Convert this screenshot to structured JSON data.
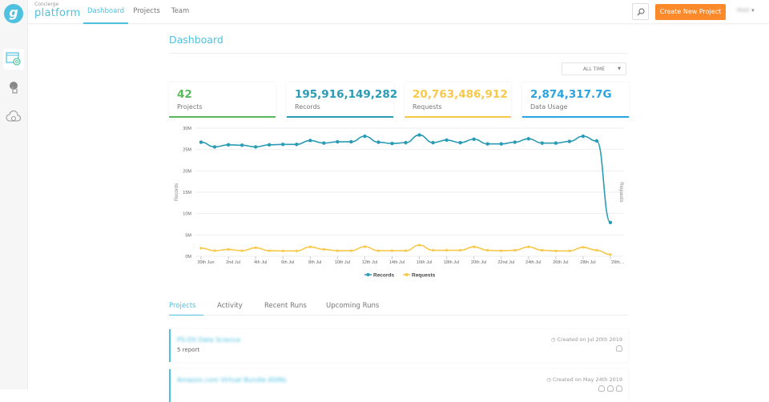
{
  "app": {
    "brand_small": "Concierge",
    "brand": "platform",
    "logo_letter": "g"
  },
  "nav": {
    "items": [
      {
        "label": "Dashboard",
        "active": true
      },
      {
        "label": "Projects"
      },
      {
        "label": "Team"
      }
    ],
    "create_label": "Create New Project",
    "user_name": "Matt"
  },
  "sidebar": {
    "icons": [
      "dashboard-settings-icon",
      "touch-icon",
      "cloud-icon"
    ]
  },
  "page": {
    "title": "Dashboard",
    "range": "ALL TIME"
  },
  "cards": [
    {
      "value": "42",
      "label": "Projects",
      "color": "#5cb85c"
    },
    {
      "value": "195,916,149,282",
      "label": "Records",
      "color": "#2a9bb5"
    },
    {
      "value": "20,763,486,912",
      "label": "Requests",
      "color": "#f7c84a"
    },
    {
      "value": "2,874,317.7G",
      "label": "Data Usage",
      "color": "#2aa4e0"
    }
  ],
  "chart_data": {
    "type": "line",
    "ylabel": "Records",
    "y2label": "Requests",
    "ylim": [
      0,
      30000000
    ],
    "y_ticks": [
      "0M",
      "5M",
      "10M",
      "15M",
      "20M",
      "25M",
      "30M"
    ],
    "x_tick_labels": [
      "30th Jun",
      "2nd Jul",
      "4th Jul",
      "6th Jul",
      "8th Jul",
      "10th Jul",
      "12th Jul",
      "14th Jul",
      "16th Jul",
      "18th Jul",
      "20th Jul",
      "22nd Jul",
      "24th Jul",
      "26th Jul",
      "28th Jul",
      "29th…"
    ],
    "grid": true,
    "legend": "bottom",
    "series": [
      {
        "name": "Records",
        "color": "#2a9bb5",
        "values": [
          26.7,
          25.6,
          26.1,
          26.0,
          25.6,
          26.1,
          26.2,
          26.2,
          27.1,
          26.5,
          26.8,
          26.8,
          28.1,
          26.7,
          26.4,
          26.6,
          28.4,
          26.6,
          27.2,
          26.6,
          27.4,
          26.3,
          26.3,
          26.7,
          27.5,
          26.5,
          26.5,
          26.9,
          28.1,
          27.0,
          7.9
        ]
      },
      {
        "name": "Requests",
        "color": "#f7c84a",
        "values": [
          1.9,
          1.3,
          1.6,
          1.3,
          2.0,
          1.3,
          1.25,
          1.25,
          2.2,
          1.6,
          1.3,
          1.3,
          2.25,
          1.3,
          1.3,
          1.3,
          2.6,
          1.4,
          1.4,
          1.4,
          2.2,
          1.4,
          1.3,
          1.4,
          2.2,
          1.4,
          1.25,
          1.25,
          2.1,
          1.4,
          0.4
        ]
      }
    ]
  },
  "tabs": [
    {
      "label": "Projects",
      "active": true
    },
    {
      "label": "Activity"
    },
    {
      "label": "Recent Runs"
    },
    {
      "label": "Upcoming Runs"
    }
  ],
  "projects": [
    {
      "name": "PS-DS Data Science",
      "count": "5 report",
      "created": "Created on Jul 20th 2019",
      "avatars": 1
    },
    {
      "name": "Amazon.com Virtual Bundle ASINs",
      "count": "",
      "created": "Created on May 24th 2019",
      "avatars": 3
    }
  ]
}
